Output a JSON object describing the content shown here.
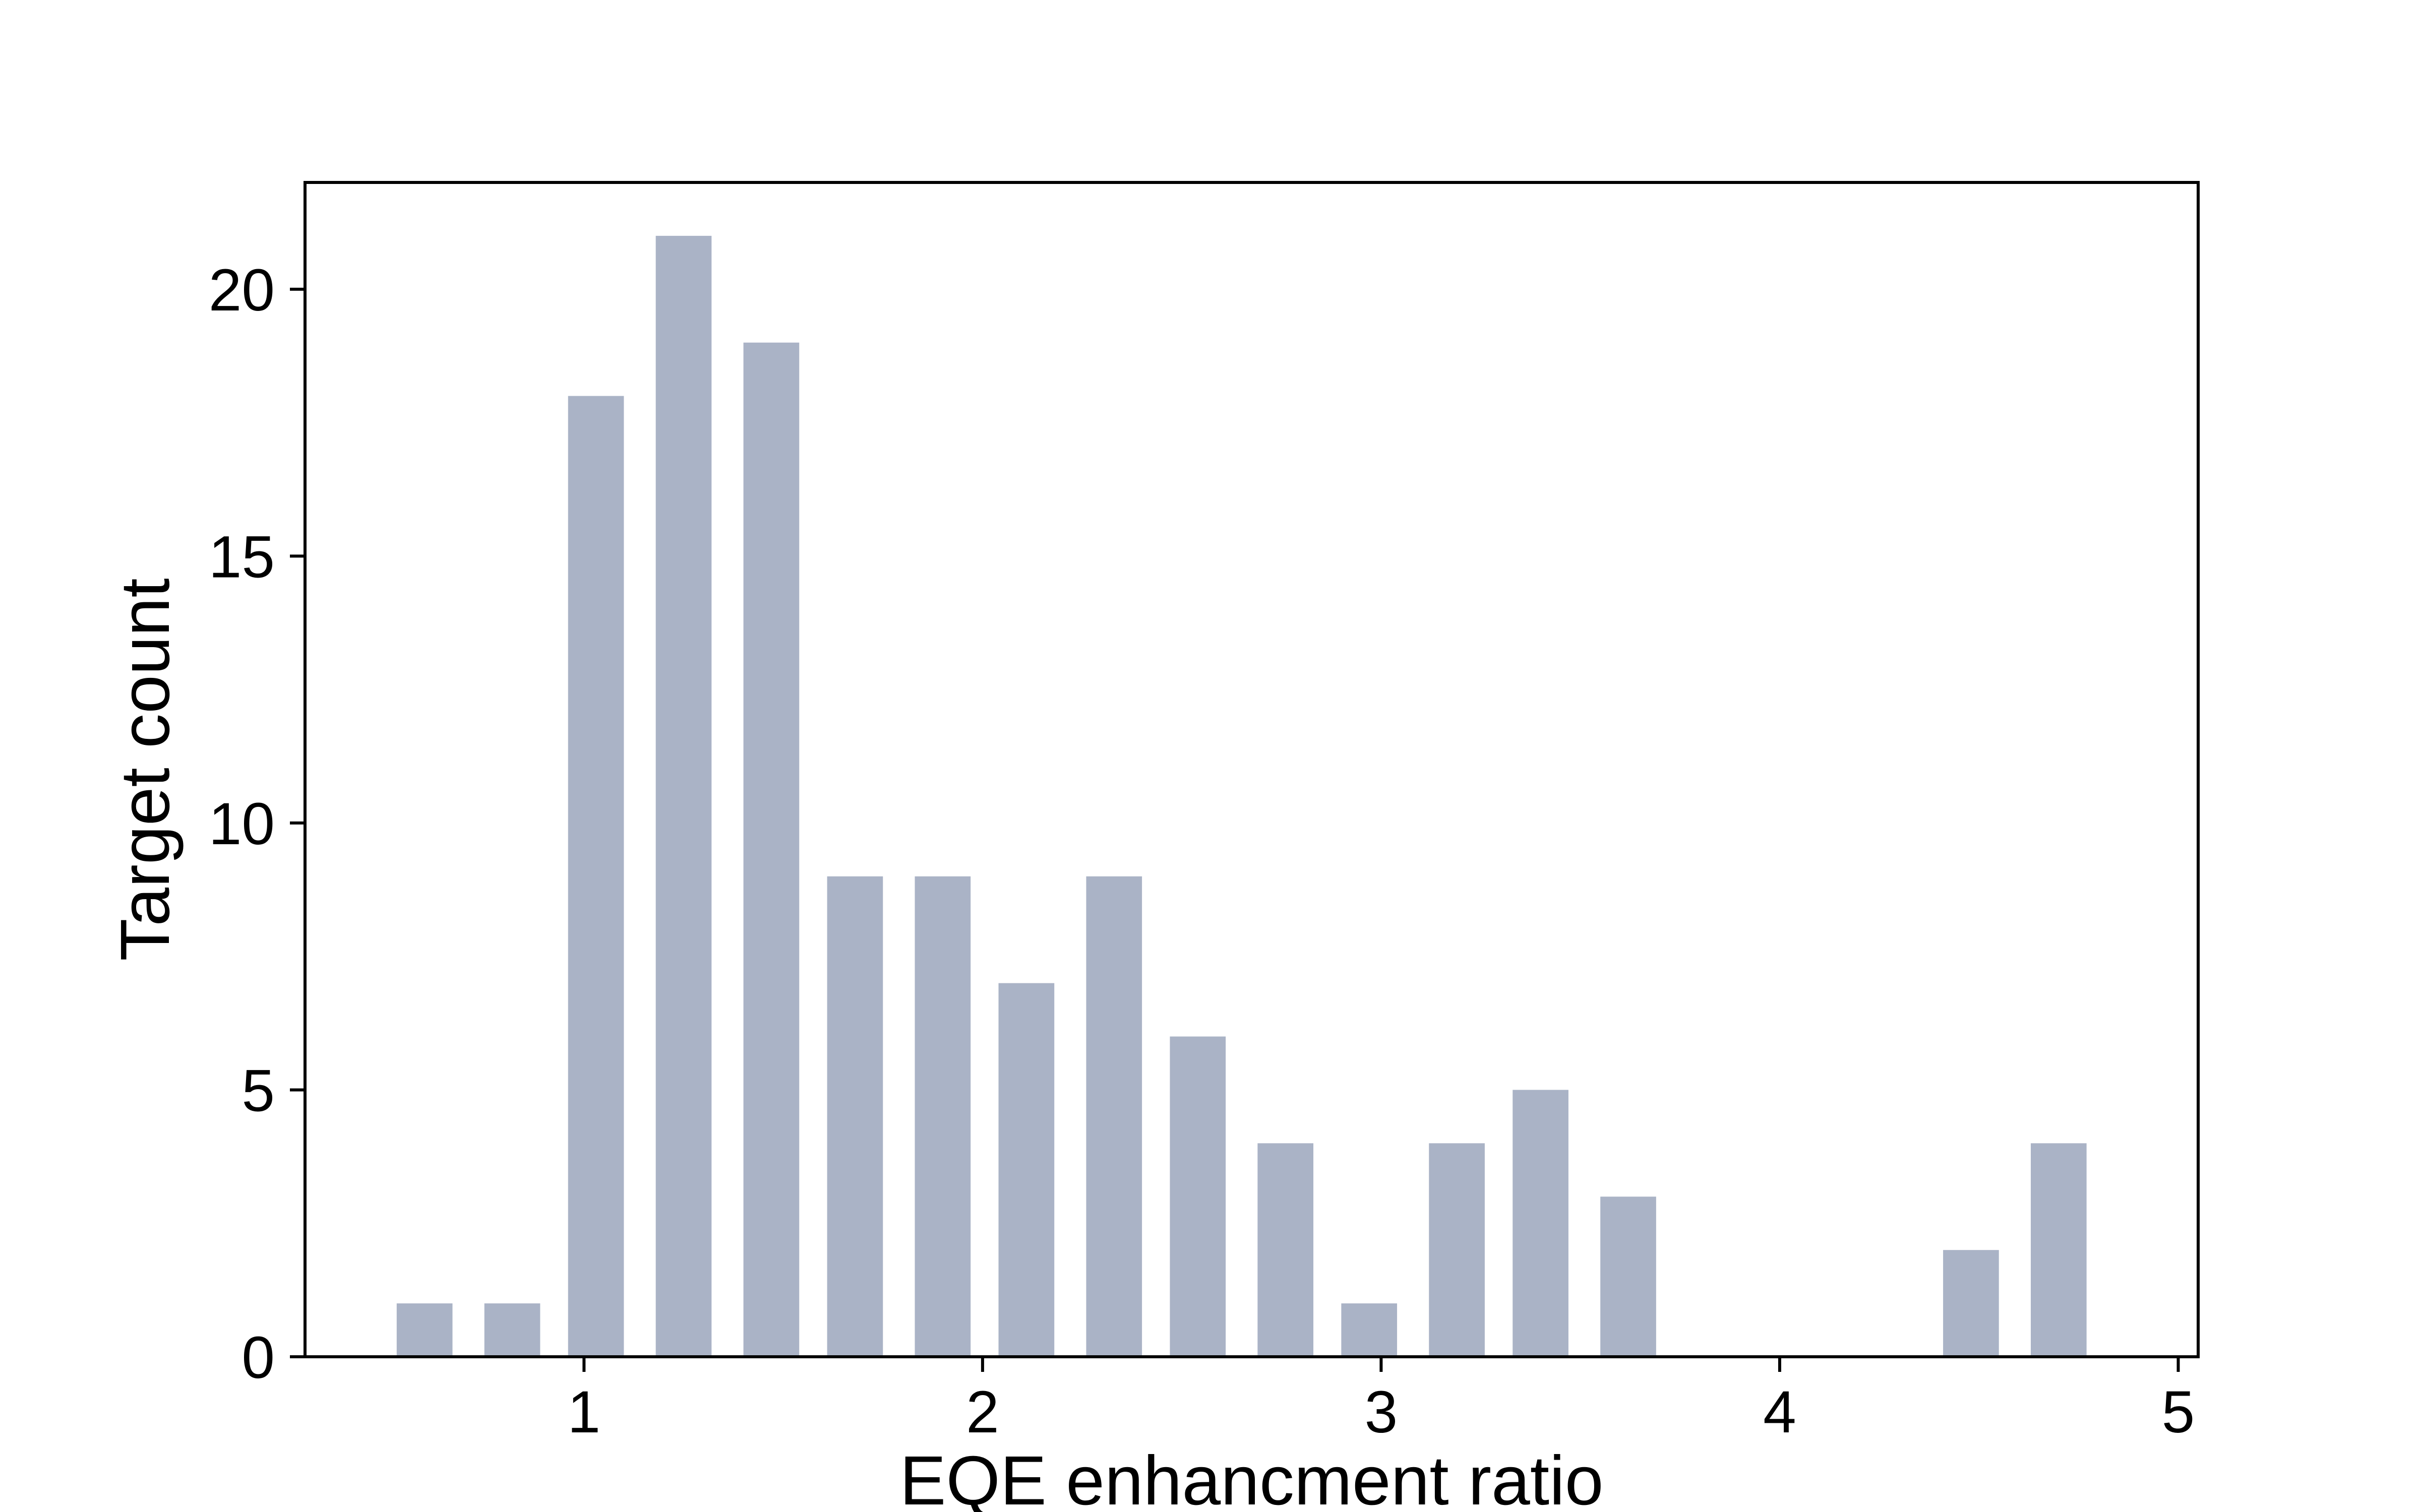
{
  "chart_data": {
    "type": "bar",
    "title": "",
    "xlabel": "EQE enhancment ratio",
    "ylabel": "Target count",
    "xlim": [
      0.3,
      5.05
    ],
    "ylim": [
      0,
      22
    ],
    "xticks": [
      1,
      2,
      3,
      4,
      5
    ],
    "yticks": [
      0,
      5,
      10,
      15,
      20
    ],
    "grid": false,
    "bar_color": "#aab3c6",
    "bar_width": 0.14,
    "x": [
      0.6,
      0.82,
      1.03,
      1.25,
      1.47,
      1.68,
      1.9,
      2.11,
      2.33,
      2.54,
      2.76,
      2.97,
      3.19,
      3.4,
      3.62,
      3.83,
      4.05,
      4.27,
      4.48,
      4.7
    ],
    "values": [
      1,
      1,
      18,
      21,
      19,
      9,
      9,
      7,
      9,
      6,
      4,
      1,
      4,
      5,
      3,
      0,
      0,
      0,
      2,
      4
    ]
  }
}
